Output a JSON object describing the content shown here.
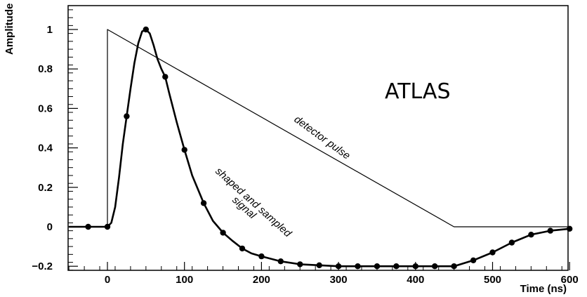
{
  "chart_data": {
    "type": "line",
    "title": "",
    "xlabel": "Time (ns)",
    "ylabel": "Amplitude",
    "xlim": [
      -50,
      600
    ],
    "ylim": [
      -0.22,
      1.1
    ],
    "grid": false,
    "logo_text": "ATLAS",
    "xticks": [
      0,
      100,
      200,
      300,
      400,
      500,
      600
    ],
    "yticks": [
      -0.2,
      0,
      0.2,
      0.4,
      0.6,
      0.8,
      1
    ],
    "ytick_labels": [
      "−0.2",
      "0",
      "0.2",
      "0.4",
      "0.6",
      "0.8",
      "1"
    ],
    "annotations": [
      {
        "id": "detector",
        "text": "detector pulse"
      },
      {
        "id": "shaped1",
        "text": "shaped and sampled"
      },
      {
        "id": "shaped2",
        "text": "signal"
      }
    ],
    "series": [
      {
        "id": "detector-pulse",
        "style": "line",
        "x": [
          -50,
          0,
          0,
          450,
          600
        ],
        "y": [
          0,
          0,
          1,
          0,
          0
        ]
      },
      {
        "id": "shaped-signal",
        "style": "curve",
        "x": [
          -50,
          -25,
          0,
          5,
          10,
          15,
          20,
          25,
          30,
          35,
          40,
          45,
          50,
          55,
          60,
          65,
          70,
          75,
          80,
          90,
          100,
          110,
          125,
          137,
          150,
          162,
          175,
          187,
          200,
          225,
          250,
          275,
          300,
          325,
          350,
          375,
          400,
          425,
          450,
          475,
          500,
          525,
          550,
          575,
          600
        ],
        "y": [
          0,
          0,
          0,
          0.02,
          0.1,
          0.25,
          0.42,
          0.56,
          0.7,
          0.83,
          0.93,
          0.99,
          1.0,
          0.98,
          0.92,
          0.85,
          0.8,
          0.76,
          0.68,
          0.53,
          0.39,
          0.26,
          0.12,
          0.03,
          -0.03,
          -0.07,
          -0.11,
          -0.135,
          -0.15,
          -0.175,
          -0.19,
          -0.195,
          -0.2,
          -0.2,
          -0.2,
          -0.2,
          -0.2,
          -0.2,
          -0.2,
          -0.17,
          -0.13,
          -0.08,
          -0.04,
          -0.02,
          -0.01
        ]
      },
      {
        "id": "samples",
        "style": "markers",
        "x": [
          -25,
          0,
          25,
          50,
          75,
          100,
          125,
          150,
          175,
          200,
          225,
          250,
          275,
          300,
          325,
          350,
          375,
          400,
          425,
          450,
          475,
          500,
          525,
          550,
          575,
          600
        ],
        "y": [
          0,
          0,
          0.56,
          1.0,
          0.76,
          0.39,
          0.12,
          -0.03,
          -0.11,
          -0.15,
          -0.175,
          -0.19,
          -0.195,
          -0.2,
          -0.2,
          -0.2,
          -0.2,
          -0.2,
          -0.2,
          -0.2,
          -0.17,
          -0.13,
          -0.08,
          -0.04,
          -0.02,
          -0.01
        ]
      }
    ]
  }
}
